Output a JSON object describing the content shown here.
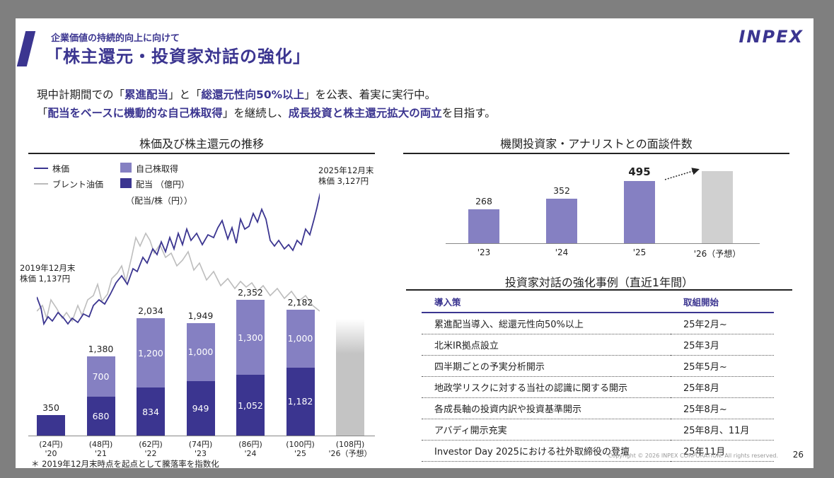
{
  "header": {
    "subtitle": "企業価値の持続的向上に向けて",
    "title": "「株主還元・投資家対話の強化」",
    "logo": "INPEX"
  },
  "lead": {
    "line1": [
      {
        "text": "現中計期間での「",
        "hl": false
      },
      {
        "text": "累進配当",
        "hl": true
      },
      {
        "text": "」と「",
        "hl": false
      },
      {
        "text": "総還元性向50%以上",
        "hl": true
      },
      {
        "text": "」を公表、着実に実行中。",
        "hl": false
      }
    ],
    "line2": [
      {
        "text": "「",
        "hl": false
      },
      {
        "text": "配当をベースに機動的な自己株取得",
        "hl": true
      },
      {
        "text": "」を継続し、",
        "hl": false
      },
      {
        "text": "成長投資と株主還元拡大の両立",
        "hl": true
      },
      {
        "text": "を目指す。",
        "hl": false
      }
    ]
  },
  "left_chart": {
    "section_title": "株価及び株主還元の推移",
    "legend": {
      "stock": "株価",
      "brent": "ブレント油価",
      "buyback": "自己株取得",
      "dividend": "配当 （億円）",
      "dividend_sub": "（配当/株（円））"
    },
    "start_annotation": [
      "2019年12月末",
      "株価 1,137円"
    ],
    "end_annotation": [
      "2025年12月末",
      "株価 3,127円"
    ],
    "footnote": "＊ 2019年12月末時点を起点として騰落率を指数化"
  },
  "right_chart": {
    "section_title": "機関投資家・アナリストとの面談件数"
  },
  "cases": {
    "section_title": "投資家対話の強化事例（直近1年間）",
    "headers": [
      "導入策",
      "取組開始"
    ],
    "rows": [
      [
        "累進配当導入、総還元性向50%以上",
        "25年2月~"
      ],
      [
        "北米IR拠点設立",
        "25年3月"
      ],
      [
        "四半期ごとの予実分析開示",
        "25年5月~"
      ],
      [
        "地政学リスクに対する当社の認識に関する開示",
        "25年8月"
      ],
      [
        "各成長軸の投資内訳や投資基準開示",
        "25年8月~"
      ],
      [
        "アバディ開示充実",
        "25年8月、11月"
      ],
      [
        "Investor Day 2025における社外取締役の登壇",
        "25年11月"
      ]
    ]
  },
  "footer": {
    "copyright": "Copyright © 2026 INPEX CORPORATION. All rights reserved.",
    "page": "26"
  },
  "colors": {
    "navy": "#3b3590",
    "lavender": "#8580c2",
    "gray": "#c8c8c8"
  },
  "chart_data": [
    {
      "type": "bar",
      "title": "株価及び株主還元の推移",
      "categories": [
        "'20",
        "'21",
        "'22",
        "'23",
        "'24",
        "'25",
        "'26（予想）"
      ],
      "dps_labels": [
        "(24円)",
        "(48円)",
        "(62円)",
        "(74円)",
        "(86円)",
        "(100円)",
        "(108円)"
      ],
      "series": [
        {
          "name": "配当",
          "values": [
            350,
            680,
            834,
            949,
            1052,
            1182,
            null
          ]
        },
        {
          "name": "自己株取得",
          "values": [
            null,
            700,
            1200,
            1000,
            1300,
            1000,
            null
          ]
        }
      ],
      "totals": [
        350,
        1380,
        2034,
        1949,
        2352,
        2182,
        null
      ],
      "forecast_index": 6,
      "line_series": [
        {
          "name": "株価",
          "note": "indexed from 2019-12 (1,137円) to 2025-12 (3,127円)"
        },
        {
          "name": "ブレント油価"
        }
      ]
    },
    {
      "type": "bar",
      "title": "機関投資家・アナリストとの面談件数",
      "categories": [
        "'23",
        "'24",
        "'25",
        "'26（予想）"
      ],
      "values": [
        268,
        352,
        495,
        null
      ],
      "forecast_index": 3
    }
  ]
}
